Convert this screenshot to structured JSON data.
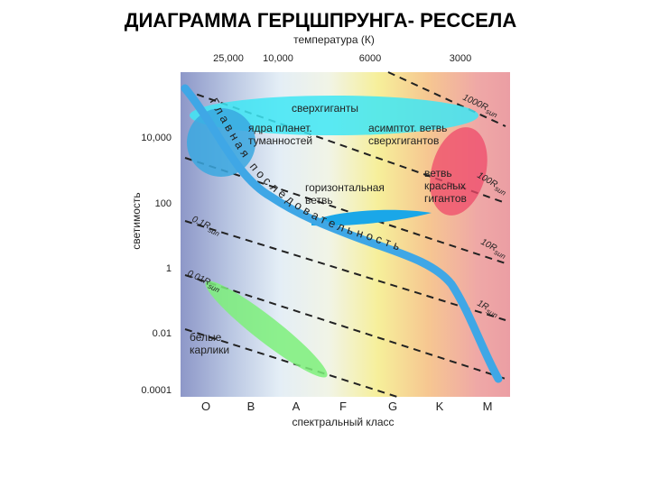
{
  "title": "ДИАГРАММА ГЕРЦШПРУНГА- РЕССЕЛА",
  "top_axis": {
    "label": "температура (К)",
    "ticks": [
      "25,000",
      "10,000",
      "6000",
      "3000"
    ]
  },
  "left_axis": {
    "label": "светимость",
    "ticks": [
      "10,000",
      "100",
      "1",
      "0.01",
      "0.0001"
    ]
  },
  "bottom_axis": {
    "label": "спектральный класс",
    "ticks": [
      "O",
      "B",
      "A",
      "F",
      "G",
      "K",
      "M"
    ]
  },
  "main_sequence": "Главная последовательность",
  "regions": [
    {
      "lines": [
        "сверхгиганты"
      ]
    },
    {
      "lines": [
        "ядра планет.",
        "туманностей"
      ]
    },
    {
      "lines": [
        "асимптот. ветвь",
        "сверхгигантов"
      ]
    },
    {
      "lines": [
        "горизонтальная",
        "ветвь"
      ]
    },
    {
      "lines": [
        "ветвь",
        "красных",
        "гигантов"
      ]
    },
    {
      "lines": [
        "белые",
        "карлики"
      ]
    }
  ],
  "radius_lines": [
    {
      "label": "1000R",
      "sub": "sun"
    },
    {
      "label": "100R",
      "sub": "sun"
    },
    {
      "label": "10R",
      "sub": "sun"
    },
    {
      "label": "1R",
      "sub": "sun"
    },
    {
      "label": "0.1R",
      "sub": "sun"
    },
    {
      "label": "0.01R",
      "sub": "sun"
    }
  ]
}
